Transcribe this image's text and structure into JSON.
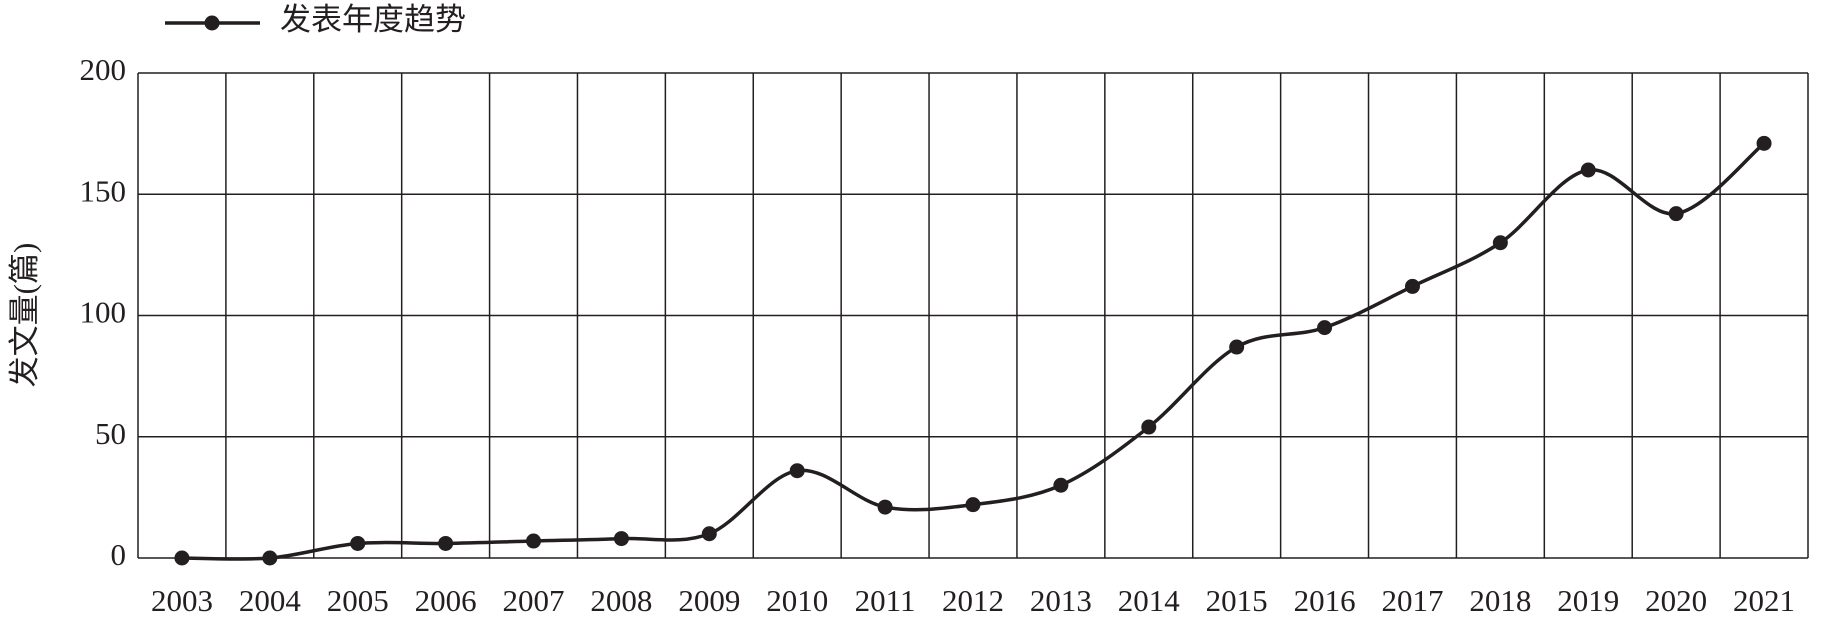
{
  "chart_data": {
    "type": "line",
    "y_label": "发文量(篇)",
    "categories": [
      "2003",
      "2004",
      "2005",
      "2006",
      "2007",
      "2008",
      "2009",
      "2010",
      "2011",
      "2012",
      "2013",
      "2014",
      "2015",
      "2016",
      "2017",
      "2018",
      "2019",
      "2020",
      "2021"
    ],
    "series": [
      {
        "name": "发表年度趋势",
        "color": "#231f20",
        "values": [
          0,
          0,
          6,
          6,
          7,
          8,
          10,
          36,
          21,
          22,
          30,
          54,
          87,
          95,
          112,
          130,
          160,
          142,
          171
        ]
      }
    ],
    "ylim": [
      0,
      200
    ],
    "yticks": [
      0,
      50,
      100,
      150,
      200
    ],
    "grid": true,
    "legend": "top-left"
  }
}
